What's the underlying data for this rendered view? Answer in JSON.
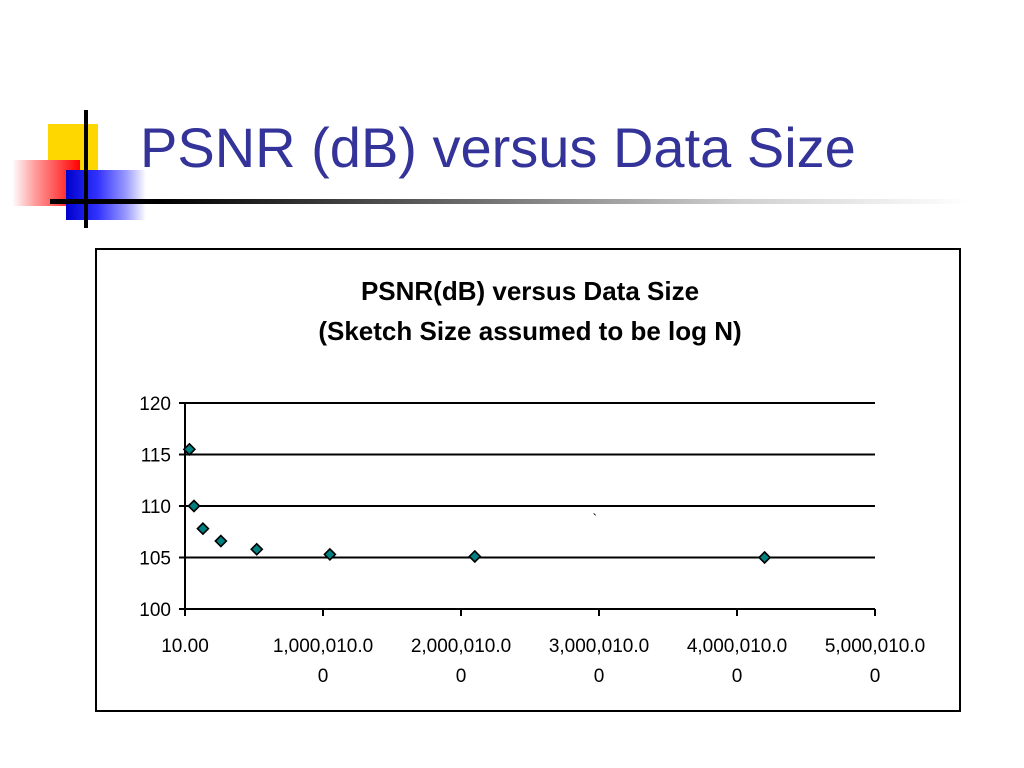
{
  "slide": {
    "title": "PSNR (dB) versus Data Size",
    "colors": {
      "title": "#333399",
      "deco_yellow": "#ffd700",
      "deco_red": "#ff0000",
      "deco_blue": "#0000cc"
    }
  },
  "chart_data": {
    "type": "scatter",
    "title": "PSNR(dB) versus Data Size",
    "subtitle": "(Sketch Size assumed to be log N)",
    "xlabel": "",
    "ylabel": "",
    "xlim": [
      10,
      5000010
    ],
    "ylim": [
      100,
      120
    ],
    "x_ticks": [
      10,
      1000010,
      2000010,
      3000010,
      4000010,
      5000010
    ],
    "x_tick_labels": [
      [
        "10.00"
      ],
      [
        "1,000,010.0",
        "0"
      ],
      [
        "2,000,010.0",
        "0"
      ],
      [
        "3,000,010.0",
        "0"
      ],
      [
        "4,000,010.0",
        "0"
      ],
      [
        "5,000,010.0",
        "0"
      ]
    ],
    "y_ticks": [
      100,
      105,
      110,
      115,
      120
    ],
    "y_tick_labels": [
      "100",
      "105",
      "110",
      "115",
      "120"
    ],
    "grid": "horizontal",
    "legend": "none",
    "annotations": [
      {
        "text": "`",
        "x": 2970000,
        "y": 108.3
      }
    ],
    "series": [
      {
        "marker": "diamond",
        "color": "#008080",
        "x": [
          32000,
          65000,
          130000,
          260000,
          520000,
          1050000,
          2100000,
          4200000
        ],
        "y": [
          115.5,
          110.0,
          107.8,
          106.6,
          105.8,
          105.3,
          105.1,
          105.0
        ]
      }
    ]
  }
}
